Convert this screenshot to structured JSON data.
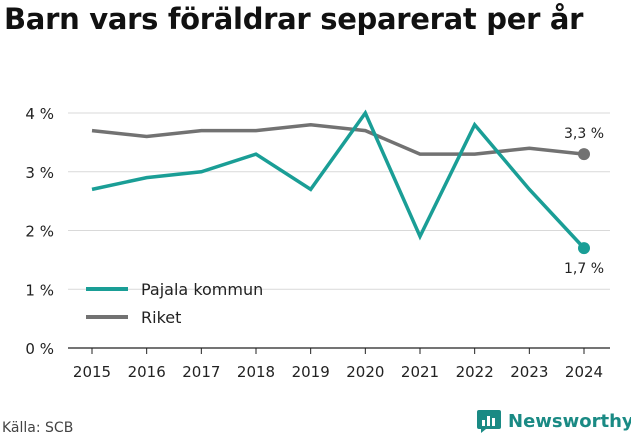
{
  "title": "Barn vars föräldrar separerat per år",
  "source": "Källa: SCB",
  "brand": "Newsworthy",
  "brand_color": "#1a8a84",
  "chart_data": {
    "type": "line",
    "x": [
      2015,
      2016,
      2017,
      2018,
      2019,
      2020,
      2021,
      2022,
      2023,
      2024
    ],
    "ylim": [
      0,
      4
    ],
    "yticks": [
      0,
      1,
      2,
      3,
      4
    ],
    "ytick_labels": [
      "0 %",
      "1 %",
      "2 %",
      "3 %",
      "4 %"
    ],
    "grid": true,
    "legend_position": "bottom-left",
    "series": [
      {
        "name": "Pajala kommun",
        "color": "#1a9e96",
        "values": [
          2.7,
          2.9,
          3.0,
          3.3,
          2.7,
          4.0,
          1.9,
          3.8,
          2.7,
          1.7
        ],
        "end_label": "1,7 %"
      },
      {
        "name": "Riket",
        "color": "#727272",
        "values": [
          3.7,
          3.6,
          3.7,
          3.7,
          3.8,
          3.7,
          3.3,
          3.3,
          3.4,
          3.3
        ],
        "end_label": "3,3 %"
      }
    ]
  }
}
